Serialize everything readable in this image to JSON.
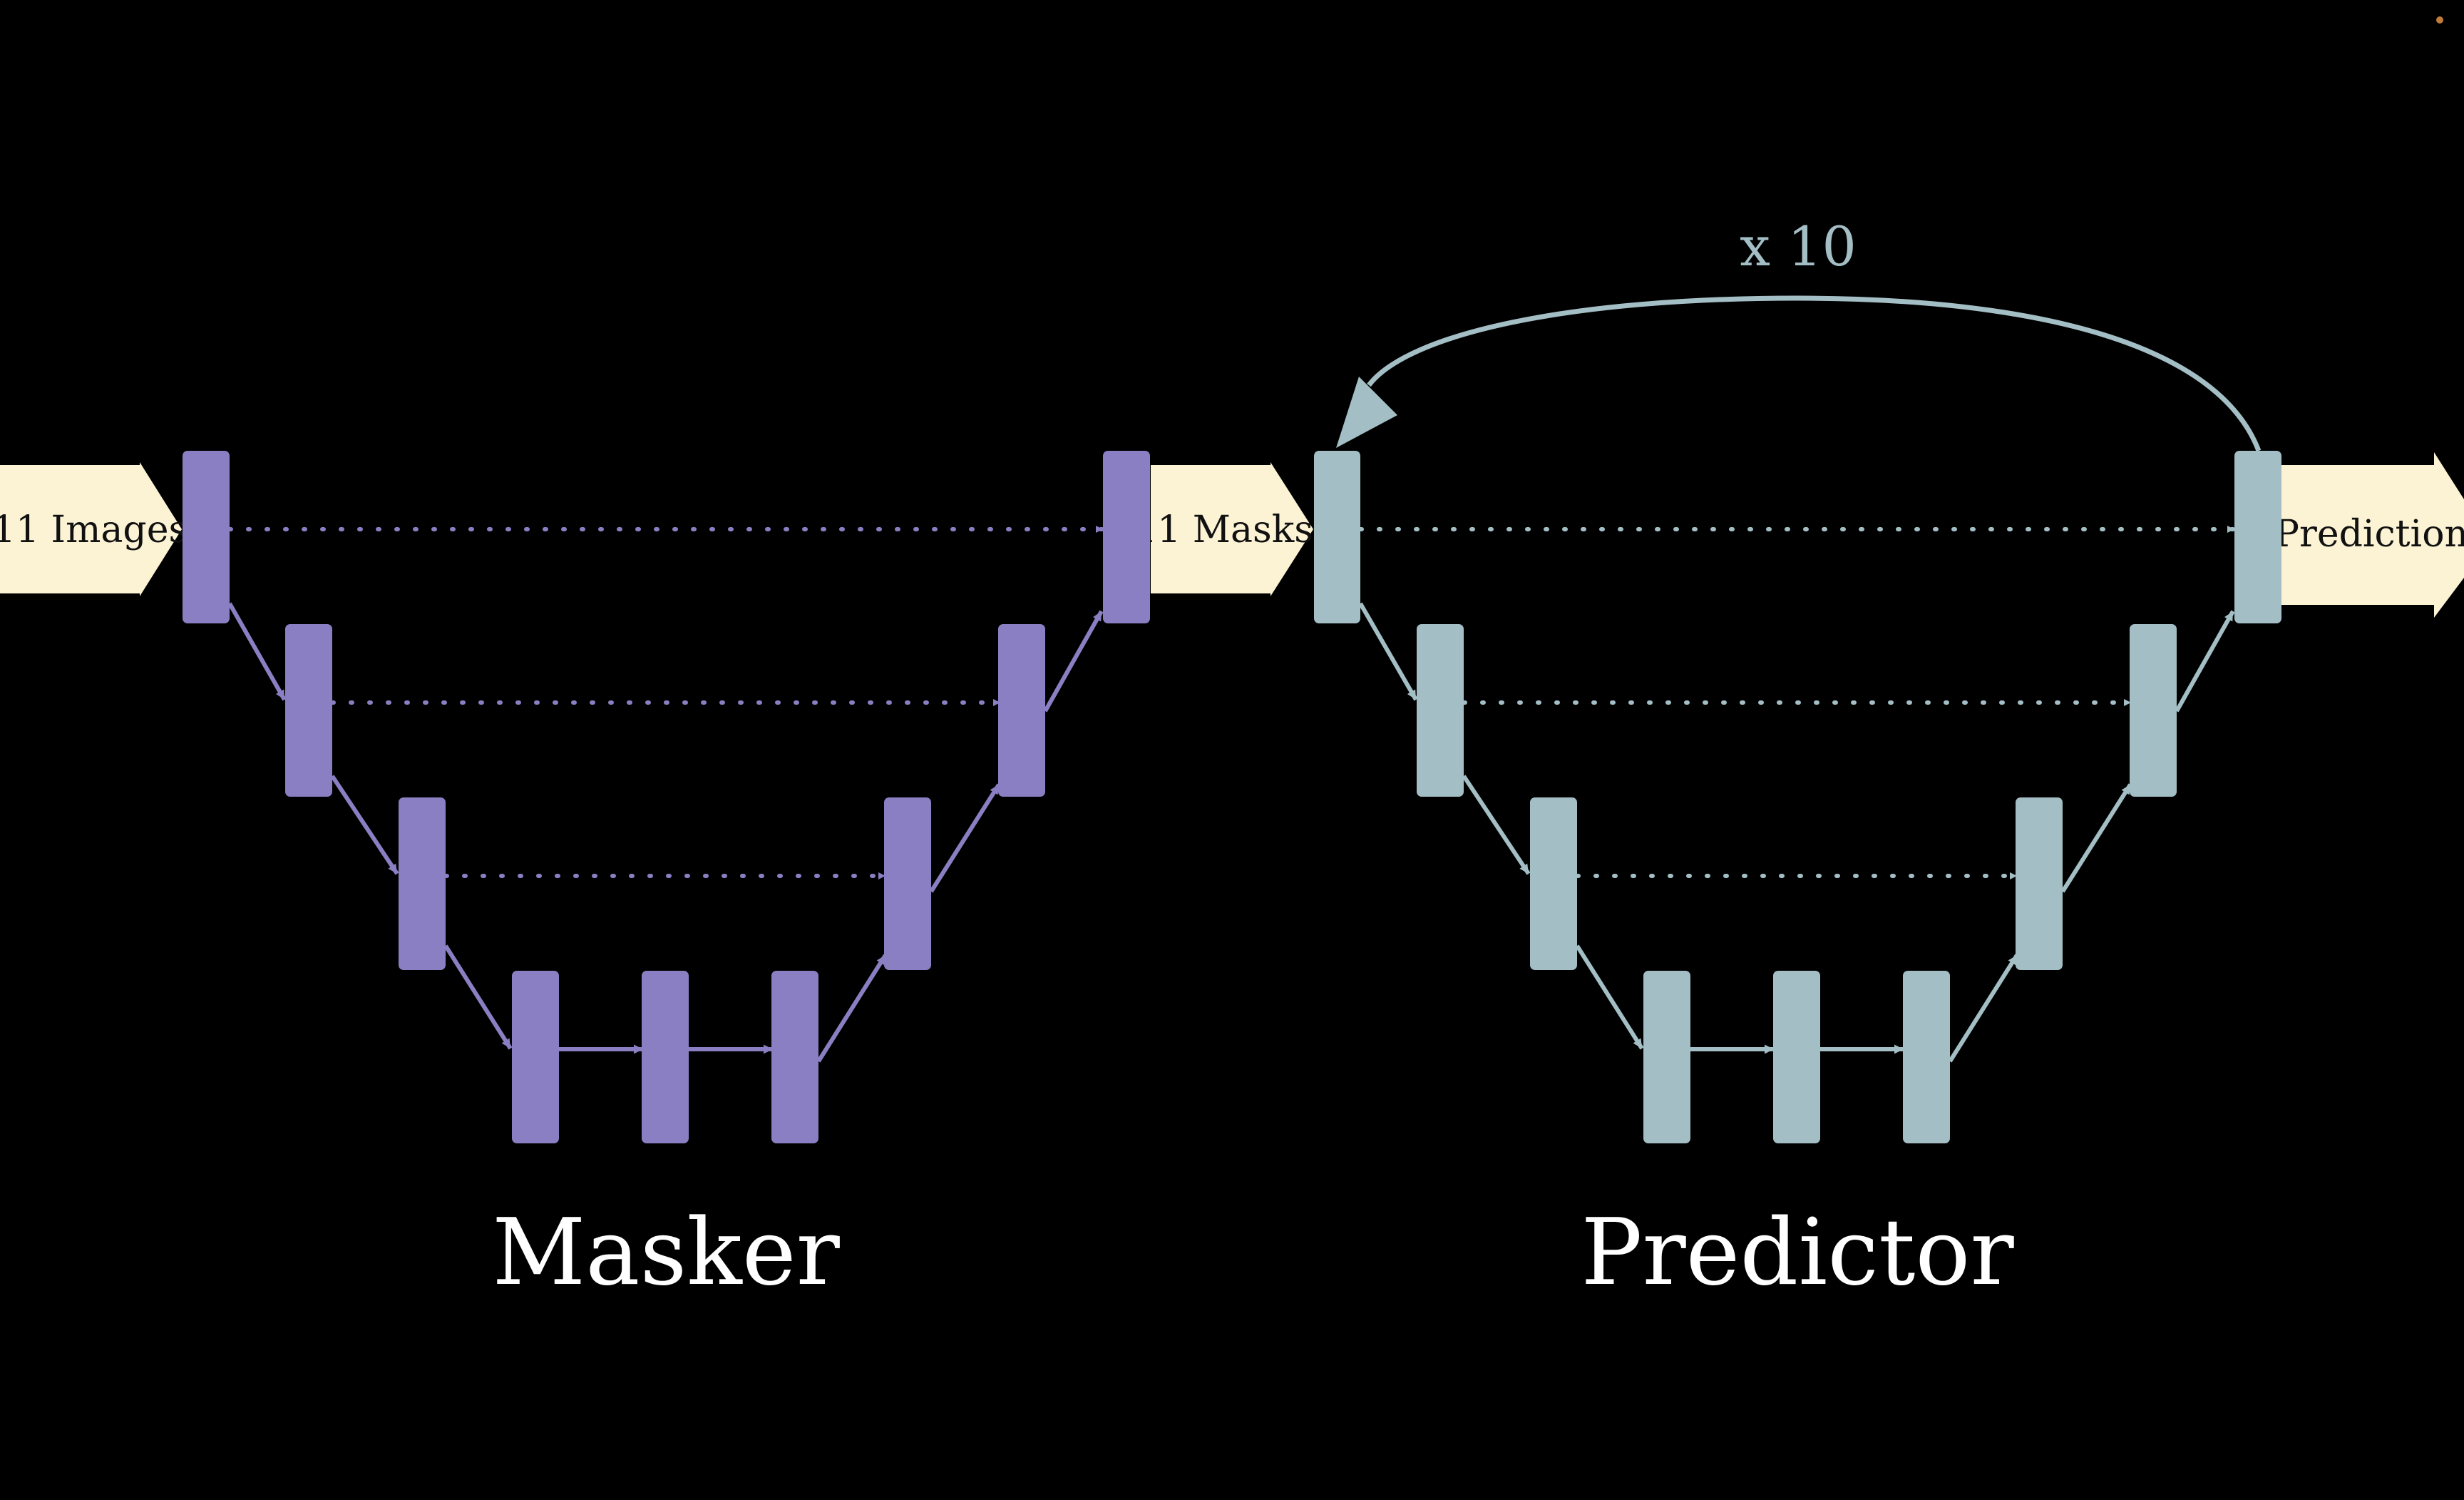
{
  "colors": {
    "background": "#000000",
    "masker": "#8a7fc2",
    "predictor": "#a3bec4",
    "io_arrow": "#fcf3d4",
    "title_text": "#ffffff"
  },
  "labels": {
    "input_images": "11 Images",
    "intermediate_masks": "11 Masks",
    "output_prediction": "Prediction",
    "loop_count": "x 10",
    "masker_title": "Masker",
    "predictor_title": "Predictor"
  },
  "networks": [
    {
      "id": "masker",
      "color_key": "masker",
      "levels": 4,
      "bottleneck_blocks": 3
    },
    {
      "id": "predictor",
      "color_key": "predictor",
      "levels": 4,
      "bottleneck_blocks": 3
    }
  ]
}
